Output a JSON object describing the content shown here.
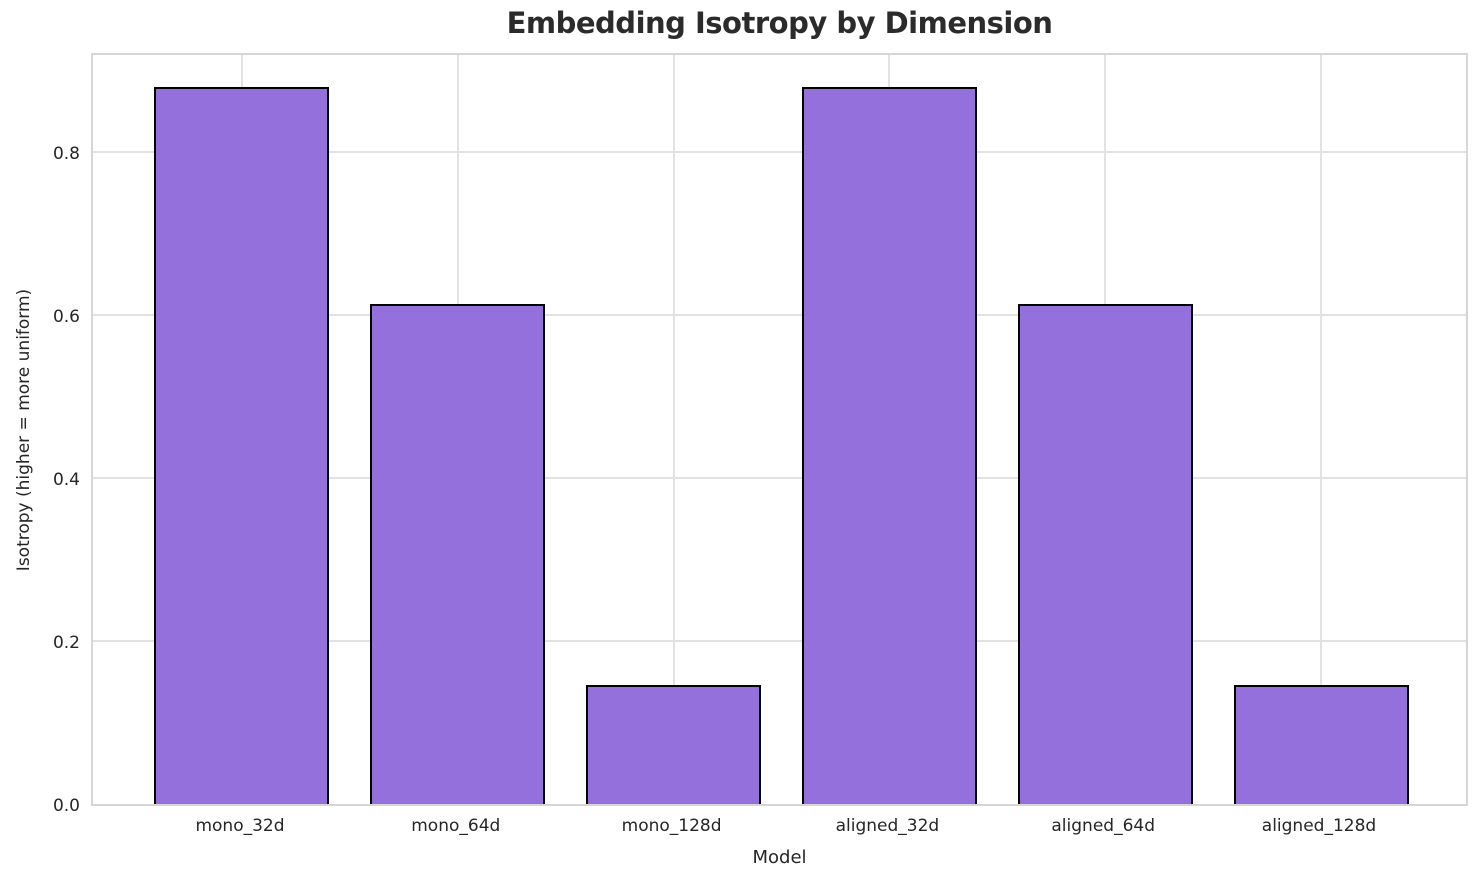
{
  "chart_data": {
    "type": "bar",
    "title": "Embedding Isotropy by Dimension",
    "xlabel": "Model",
    "ylabel": "Isotropy (higher = more uniform)",
    "categories": [
      "mono_32d",
      "mono_64d",
      "mono_128d",
      "aligned_32d",
      "aligned_64d",
      "aligned_128d"
    ],
    "values": [
      0.88,
      0.613,
      0.146,
      0.88,
      0.613,
      0.146
    ],
    "ylim": [
      0,
      0.924
    ],
    "yticks": [
      0,
      0.2,
      0.4,
      0.6,
      0.8
    ],
    "ytick_labels": [
      "0.0",
      "0.2",
      "0.4",
      "0.6",
      "0.8"
    ],
    "grid": "both",
    "legend": "none",
    "bar_color": "#9370DB",
    "bar_edge_color": "#000000",
    "grid_color": "#e2e2e2",
    "axis_text_color": "#262626",
    "title_color": "#2b2b2b",
    "background_color": "#ffffff"
  }
}
